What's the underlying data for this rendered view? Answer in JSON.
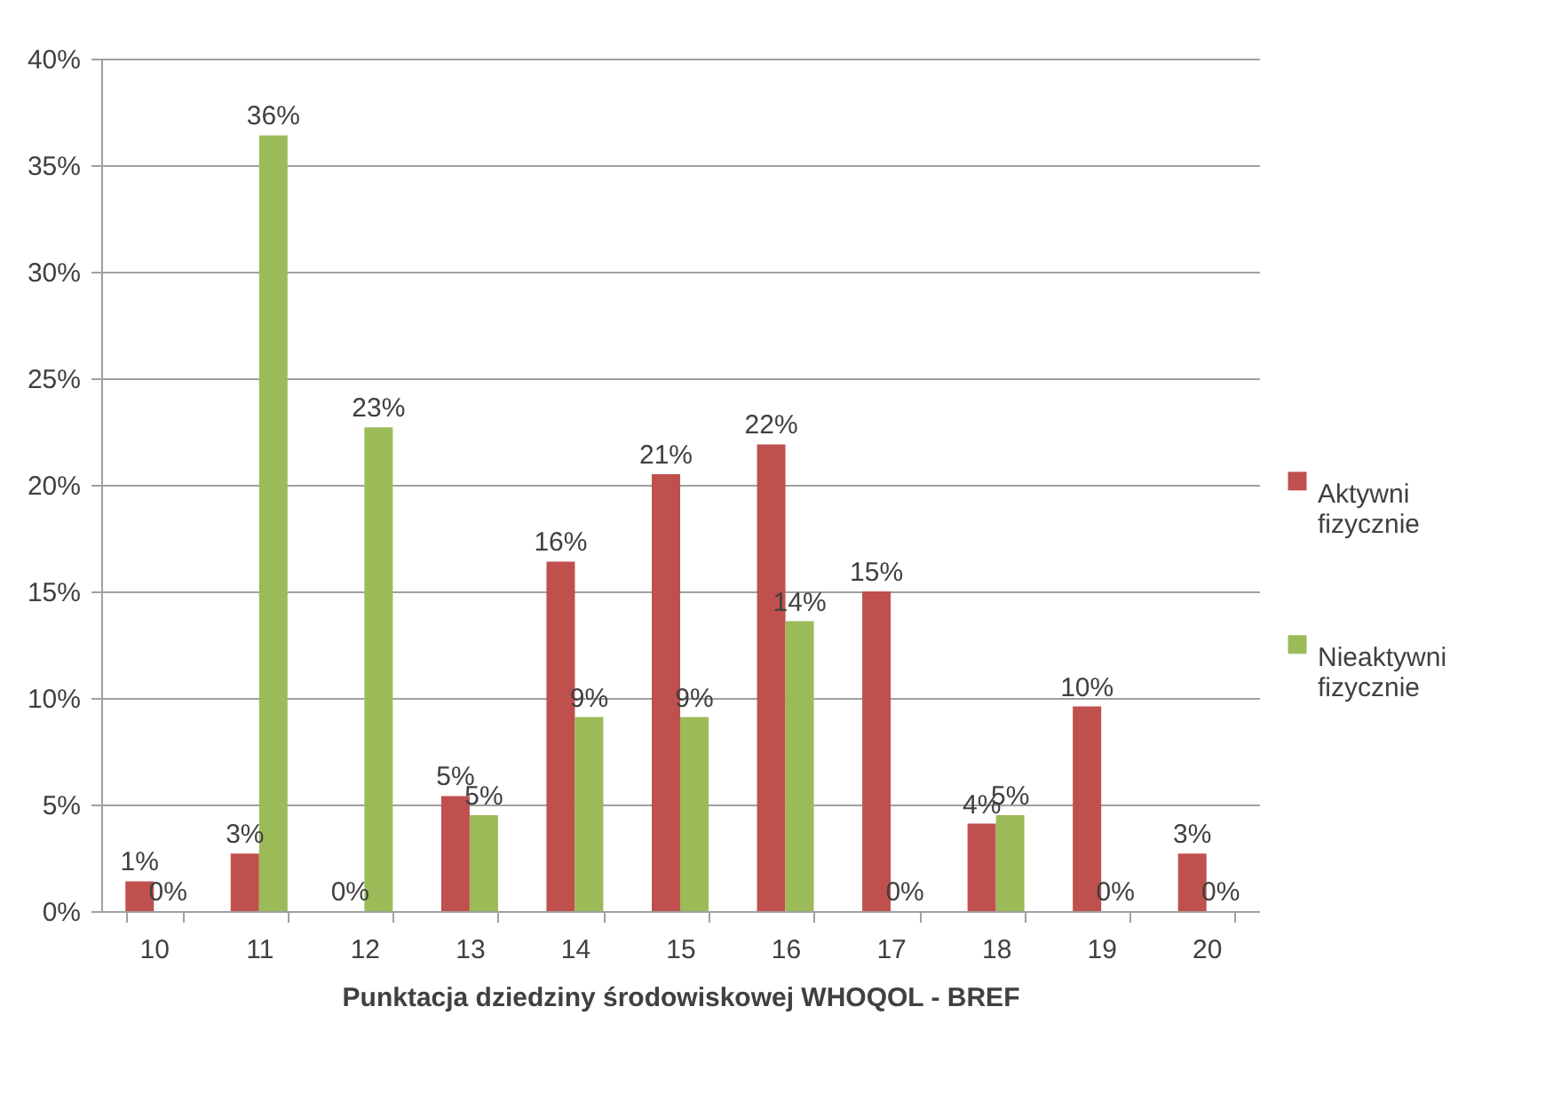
{
  "chart_data": {
    "type": "bar",
    "xlabel": "Punktacja dziedziny środowiskowej WHOQOL - BREF",
    "categories": [
      "10",
      "11",
      "12",
      "13",
      "14",
      "15",
      "16",
      "17",
      "18",
      "19",
      "20"
    ],
    "series": [
      {
        "name": "Aktywni fizycznie",
        "color": "#c0504d",
        "values": [
          1.4,
          2.7,
          0,
          5.4,
          16.4,
          20.5,
          21.9,
          15.0,
          4.1,
          9.6,
          2.7
        ],
        "value_labels": [
          "1%",
          "3%",
          "0%",
          "5%",
          "16%",
          "21%",
          "22%",
          "15%",
          "4%",
          "10%",
          "3%"
        ]
      },
      {
        "name": "Nieaktywni fizycznie",
        "color": "#9bbb59",
        "values": [
          0,
          36.4,
          22.7,
          4.5,
          9.1,
          9.1,
          13.6,
          0,
          4.5,
          0,
          0
        ],
        "value_labels": [
          "0%",
          "36%",
          "23%",
          "5%",
          "9%",
          "9%",
          "14%",
          "0%",
          "5%",
          "0%",
          "0%"
        ]
      }
    ],
    "ylim": [
      0,
      40
    ],
    "yticks": [
      {
        "value": 0,
        "label": "0%"
      },
      {
        "value": 5,
        "label": "5%"
      },
      {
        "value": 10,
        "label": "10%"
      },
      {
        "value": 15,
        "label": "15%"
      },
      {
        "value": 20,
        "label": "20%"
      },
      {
        "value": 25,
        "label": "25%"
      },
      {
        "value": 30,
        "label": "30%"
      },
      {
        "value": 35,
        "label": "35%"
      },
      {
        "value": 40,
        "label": "40%"
      }
    ],
    "grid": "y",
    "legend": "right"
  }
}
